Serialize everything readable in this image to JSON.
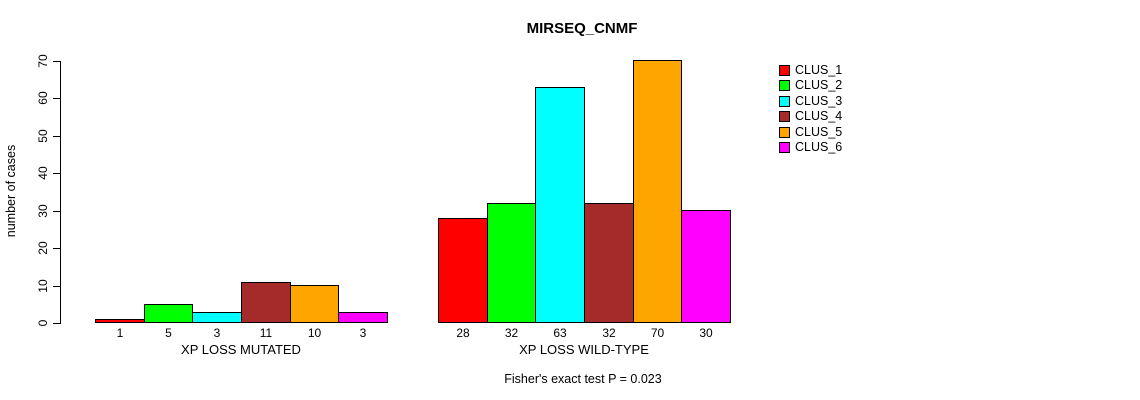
{
  "chart_data": {
    "type": "bar",
    "title": "MIRSEQ_CNMF",
    "ylabel": "number of cases",
    "ylim": [
      0,
      70
    ],
    "yticks": [
      0,
      10,
      20,
      30,
      40,
      50,
      60,
      70
    ],
    "grid": false,
    "legend_position": "topright-outside",
    "categories": [
      "XP LOSS MUTATED",
      "XP LOSS WILD-TYPE"
    ],
    "series": [
      {
        "name": "CLUS_1",
        "color": "#FF0000",
        "values": [
          1,
          28
        ]
      },
      {
        "name": "CLUS_2",
        "color": "#00FF00",
        "values": [
          5,
          32
        ]
      },
      {
        "name": "CLUS_3",
        "color": "#00FFFF",
        "values": [
          3,
          63
        ]
      },
      {
        "name": "CLUS_4",
        "color": "#A52A2A",
        "values": [
          11,
          32
        ]
      },
      {
        "name": "CLUS_5",
        "color": "#FFA500",
        "values": [
          10,
          70
        ]
      },
      {
        "name": "CLUS_6",
        "color": "#FF00FF",
        "values": [
          3,
          30
        ]
      }
    ],
    "bar_value_labels": [
      [
        1,
        5,
        3,
        11,
        10,
        3
      ],
      [
        28,
        32,
        63,
        32,
        70,
        30
      ]
    ],
    "annotation": "Fisher's exact test P = 0.023"
  }
}
